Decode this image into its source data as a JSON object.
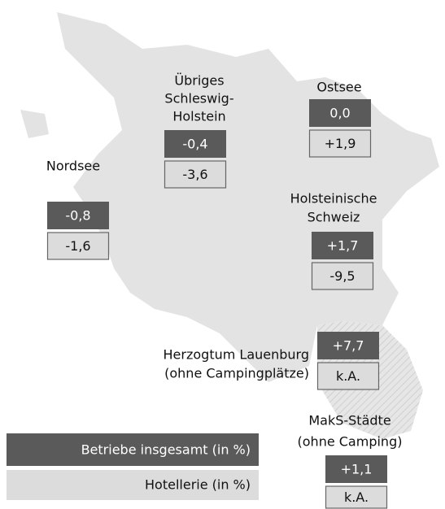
{
  "regions": [
    {
      "name": [
        "Übriges",
        "Schleswig-",
        "Holstein"
      ],
      "total": "-0,4",
      "hotel": "-3,6"
    },
    {
      "name": [
        "Ostsee"
      ],
      "total": "0,0",
      "hotel": "+1,9"
    },
    {
      "name": [
        "Nordsee"
      ],
      "total": "-0,8",
      "hotel": "-1,6"
    },
    {
      "name": [
        "Holsteinische",
        "Schweiz"
      ],
      "total": "+1,7",
      "hotel": "-9,5"
    },
    {
      "name": [
        "Herzogtum Lauenburg",
        "(ohne Campingplätze)"
      ],
      "total": "+7,7",
      "hotel": "k.A."
    },
    {
      "name": [
        "MakS-Städte",
        "(ohne Camping)"
      ],
      "total": "+1,1",
      "hotel": "k.A."
    }
  ],
  "legend": {
    "total": "Betriebe insgesamt (in %)",
    "hotel": "Hotellerie (in %)"
  }
}
